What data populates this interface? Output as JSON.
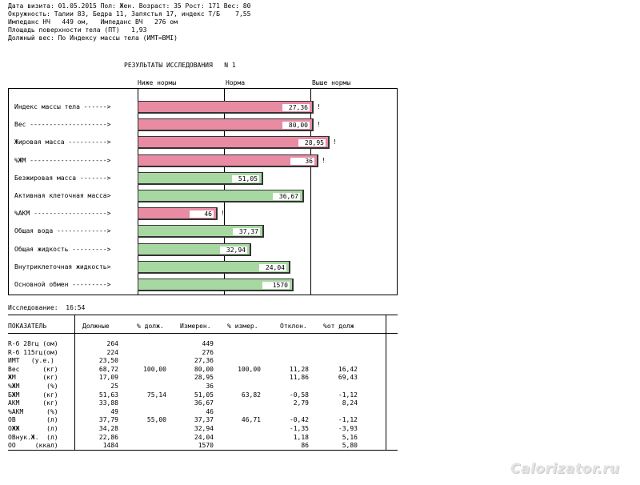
{
  "header": {
    "lines": [
      "Дата визита: 01.05.2015 Пол: Жен. Возраст: 35 Рост: 171 Вес: 80",
      "Окружность: Талии 83, Бедра 11, Запястья 17, индекс Т/Б    7,55",
      "Импеданс НЧ   449 ом,   Импеданс ВЧ   276 ом",
      "Площадь поверхности тела (ПТ)   1,93",
      "Должный вес: По Индексу массы тела (ИМТ=BMI)"
    ]
  },
  "results": {
    "title": "РЕЗУЛЬТАТЫ ИССЛЕДОВАНИЯ   N 1",
    "zones": [
      "Ниже нормы",
      "Норма",
      "Выше нормы"
    ],
    "rows": [
      {
        "label": "Индекс массы тела ------>",
        "value": "27,36",
        "num": 27.36,
        "status": "pink",
        "flag": "!"
      },
      {
        "label": "Вес -------------------->",
        "value": "80,00",
        "num": 80.0,
        "status": "pink",
        "flag": "!"
      },
      {
        "label": "Жировая масса ---------->",
        "value": "28,95",
        "num": 28.95,
        "status": "pink",
        "flag": "!"
      },
      {
        "label": "%ЖМ -------------------->",
        "value": "36",
        "num": 36,
        "status": "pink",
        "flag": "!"
      },
      {
        "label": "Безжировая масса ------->",
        "value": "51,05",
        "num": 51.05,
        "status": "green",
        "flag": ""
      },
      {
        "label": "Активная клеточная масса>",
        "value": "36,67",
        "num": 36.67,
        "status": "green",
        "flag": ""
      },
      {
        "label": "%АКМ ------------------->",
        "value": "46",
        "num": 46,
        "status": "pink",
        "flag": "!"
      },
      {
        "label": "Общая вода ------------->",
        "value": "37,37",
        "num": 37.37,
        "status": "green",
        "flag": ""
      },
      {
        "label": "Общая жидкость --------->",
        "value": "32,94",
        "num": 32.94,
        "status": "green",
        "flag": ""
      },
      {
        "label": "Внутриклеточная жидкость>",
        "value": "24,04",
        "num": 24.04,
        "status": "green",
        "flag": ""
      },
      {
        "label": "Основной обмен --------->",
        "value": "1570",
        "num": 1570,
        "status": "green",
        "flag": ""
      }
    ],
    "colors": {
      "above_norm": "#e98ba3",
      "norm": "#a8d8a2"
    }
  },
  "exam_time": "Исследование:  16:54",
  "table": {
    "headers": [
      "ПОКАЗАТЕЛЬ",
      "Должные",
      "% долж.",
      "Измерен.",
      "% измер.",
      "Отклон.",
      "%от долж"
    ],
    "rows": [
      [
        "R-б 28гц (ом)",
        "264",
        "",
        "449",
        "",
        "",
        ""
      ],
      [
        "R-б 115гц(ом)",
        "224",
        "",
        "276",
        "",
        "",
        ""
      ],
      [
        "ИМТ   (у.е.)",
        "23,50",
        "",
        "27,36",
        "",
        "",
        ""
      ],
      [
        "Вес      (кг)",
        "68,72",
        "100,00",
        "80,00",
        "100,00",
        "11,28",
        "16,42"
      ],
      [
        "ЖМ       (кг)",
        "17,09",
        "",
        "28,95",
        "",
        "11,86",
        "69,43"
      ],
      [
        "%ЖМ       (%)",
        "25",
        "",
        "36",
        "",
        "",
        ""
      ],
      [
        "БЖМ      (кг)",
        "51,63",
        "75,14",
        "51,05",
        "63,82",
        "-0,58",
        "-1,12"
      ],
      [
        "АКМ      (кг)",
        "33,88",
        "",
        "36,67",
        "",
        "2,79",
        "8,24"
      ],
      [
        "%АКМ      (%)",
        "49",
        "",
        "46",
        "",
        "",
        ""
      ],
      [
        "ОВ        (л)",
        "37,79",
        "55,00",
        "37,37",
        "46,71",
        "-0,42",
        "-1,12"
      ],
      [
        "ОЖЖ       (л)",
        "34,28",
        "",
        "32,94",
        "",
        "-1,35",
        "-3,93"
      ],
      [
        "ОВнук.Ж.  (л)",
        "22,86",
        "",
        "24,04",
        "",
        "1,18",
        "5,16"
      ],
      [
        "ОО     (ккал)",
        "1484",
        "",
        "1570",
        "",
        "86",
        "5,80"
      ]
    ]
  },
  "watermark": "Calorizator.ru"
}
